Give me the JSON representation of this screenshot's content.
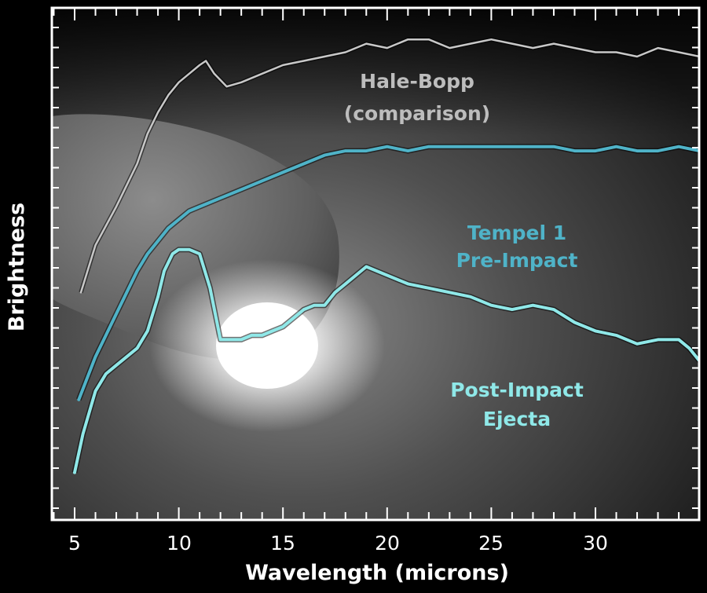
{
  "chart_data": {
    "type": "line",
    "title": "",
    "xlabel": "Wavelength (microns)",
    "ylabel": "Brightness",
    "xlim": [
      4,
      35
    ],
    "ylim": [
      0,
      100
    ],
    "x_ticks": [
      "5",
      "10",
      "15",
      "20",
      "25",
      "30"
    ],
    "x_tick_values": [
      5,
      10,
      15,
      20,
      25,
      30
    ],
    "grid": false,
    "legend": "none (series labeled inline on the plot)",
    "background": "photograph of comet Tempel 1 nucleus with bright impact flash",
    "series": [
      {
        "name": "Hale-Bopp (comparison)",
        "label_lines": [
          "Hale-Bopp",
          "(comparison)"
        ],
        "color": "#c8c8c8",
        "x": [
          5.3,
          6.0,
          7.0,
          8.0,
          8.5,
          9.0,
          9.5,
          10.0,
          10.5,
          11.0,
          11.3,
          11.7,
          12.3,
          13.0,
          14.0,
          15.0,
          16.0,
          17.0,
          18.0,
          19.0,
          20.0,
          21.0,
          22.0,
          23.0,
          24.0,
          25.0,
          26.0,
          27.0,
          28.0,
          29.0,
          30.0,
          31.0,
          32.0,
          33.0,
          34.0,
          35.0
        ],
        "y": [
          45,
          56,
          65,
          75,
          82,
          87,
          91,
          94,
          96,
          98,
          99,
          96,
          93,
          94,
          96,
          98,
          99,
          100,
          101,
          103,
          102,
          104,
          104,
          102,
          103,
          104,
          103,
          102,
          103,
          102,
          101,
          101,
          100,
          102,
          101,
          100
        ]
      },
      {
        "name": "Tempel 1 Pre-Impact",
        "label_lines": [
          "Tempel 1",
          "Pre-Impact"
        ],
        "color": "#4fb3c8",
        "x": [
          5.2,
          5.6,
          6.0,
          6.5,
          7.0,
          7.5,
          8.0,
          8.5,
          9.0,
          9.5,
          10.0,
          10.5,
          11.0,
          12.0,
          13.0,
          14.0,
          15.0,
          16.0,
          17.0,
          18.0,
          19.0,
          20.0,
          21.0,
          22.0,
          23.0,
          24.0,
          25.0,
          26.0,
          27.0,
          28.0,
          29.0,
          30.0,
          31.0,
          32.0,
          33.0,
          34.0,
          35.0
        ],
        "y": [
          20,
          25,
          30,
          35,
          40,
          45,
          50,
          54,
          57,
          60,
          62,
          64,
          65,
          67,
          69,
          71,
          73,
          75,
          77,
          78,
          78,
          79,
          78,
          79,
          79,
          79,
          79,
          79,
          79,
          79,
          78,
          78,
          79,
          78,
          78,
          79,
          78
        ]
      },
      {
        "name": "Post-Impact Ejecta",
        "label_lines": [
          "Post-Impact",
          "Ejecta"
        ],
        "color": "#8fe8e8",
        "x": [
          5.0,
          5.4,
          6.0,
          6.5,
          7.0,
          7.5,
          8.0,
          8.5,
          9.0,
          9.3,
          9.7,
          10.0,
          10.5,
          11.0,
          11.5,
          12.0,
          12.5,
          13.0,
          13.5,
          14.0,
          14.5,
          15.0,
          15.5,
          16.0,
          16.5,
          17.0,
          17.5,
          18.0,
          18.5,
          19.0,
          19.5,
          20.0,
          21.0,
          22.0,
          23.0,
          24.0,
          25.0,
          26.0,
          27.0,
          28.0,
          29.0,
          30.0,
          31.0,
          32.0,
          33.0,
          34.0,
          34.5,
          35.0
        ],
        "y": [
          3,
          12,
          22,
          26,
          28,
          30,
          32,
          36,
          44,
          50,
          54,
          55,
          55,
          54,
          46,
          34,
          34,
          34,
          35,
          35,
          36,
          37,
          39,
          41,
          42,
          42,
          45,
          47,
          49,
          51,
          50,
          49,
          47,
          46,
          45,
          44,
          42,
          41,
          42,
          41,
          38,
          36,
          35,
          33,
          34,
          34,
          32,
          29
        ]
      }
    ]
  }
}
